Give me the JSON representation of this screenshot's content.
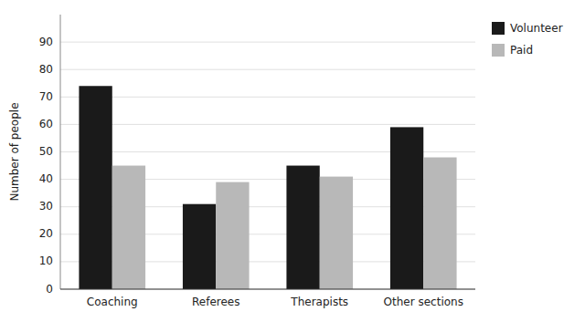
{
  "chart_data": {
    "type": "bar",
    "categories": [
      "Coaching",
      "Referees",
      "Therapists",
      "Other sections"
    ],
    "series": [
      {
        "name": "Volunteer",
        "color": "#1a1a1a",
        "values": [
          74,
          31,
          45,
          59
        ]
      },
      {
        "name": "Paid",
        "color": "#b8b8b8",
        "values": [
          45,
          39,
          41,
          48
        ]
      }
    ],
    "ylabel": "Number of people",
    "ylim": [
      0,
      100
    ],
    "yticks": [
      0,
      10,
      20,
      30,
      40,
      50,
      60,
      70,
      80,
      90
    ],
    "grid": true,
    "legend": "right"
  }
}
